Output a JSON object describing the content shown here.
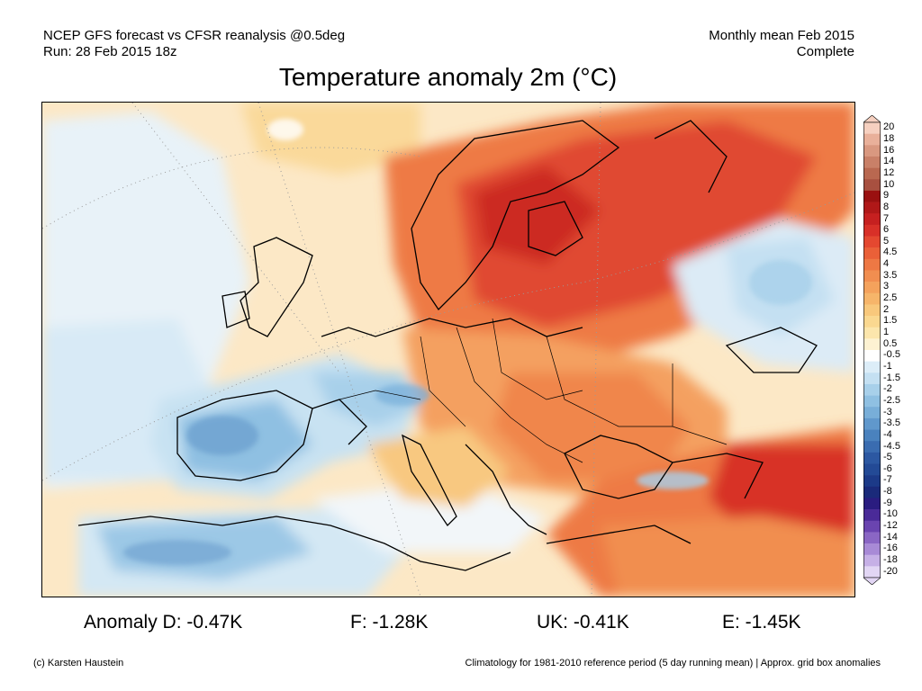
{
  "header": {
    "left_line1": "NCEP GFS forecast vs CFSR reanalysis @0.5deg",
    "left_line2": "Run: 28 Feb 2015 18z",
    "right_line1": "Monthly mean Feb 2015",
    "right_line2": "Complete"
  },
  "title": "Temperature anomaly 2m (°C)",
  "colorbar": {
    "labels": [
      "20",
      "18",
      "16",
      "14",
      "12",
      "10",
      "9",
      "8",
      "7",
      "6",
      "5",
      "4.5",
      "4",
      "3.5",
      "3",
      "2.5",
      "2",
      "1.5",
      "1",
      "0.5",
      "-0.5",
      "-1",
      "-1.5",
      "-2",
      "-2.5",
      "-3",
      "-3.5",
      "-4",
      "-4.5",
      "-5",
      "-6",
      "-7",
      "-8",
      "-9",
      "-10",
      "-12",
      "-14",
      "-16",
      "-18",
      "-20"
    ],
    "colors": [
      "#f6d0c0",
      "#e9b09a",
      "#d99880",
      "#c98068",
      "#b96850",
      "#a85040",
      "#9a1010",
      "#b01818",
      "#c62020",
      "#d83028",
      "#e44830",
      "#ea6038",
      "#ee7844",
      "#f18e50",
      "#f4a25c",
      "#f6b56a",
      "#f8c87c",
      "#fad890",
      "#fce6ac",
      "#fdf2d2",
      "#ffffff",
      "#dcedf8",
      "#c4e0f2",
      "#a8d0ea",
      "#8fc0e2",
      "#78aed8",
      "#6098cc",
      "#4a82be",
      "#3a6cb0",
      "#2c58a2",
      "#234a96",
      "#1c3a88",
      "#1a2a7a",
      "#2a1c80",
      "#4a2a98",
      "#6a44b0",
      "#8a66c4",
      "#a88ad6",
      "#c6b0e6",
      "#e2d6f4"
    ]
  },
  "anomalies": [
    {
      "label": "Anomaly D: -0.47K"
    },
    {
      "label": "F: -1.28K"
    },
    {
      "label": "UK: -0.41K"
    },
    {
      "label": "E: -1.45K"
    }
  ],
  "footer": {
    "left": "(c) Karsten Haustein",
    "right": "Climatology for 1981-2010 reference period (5 day running mean) | Approx. grid box anomalies"
  }
}
